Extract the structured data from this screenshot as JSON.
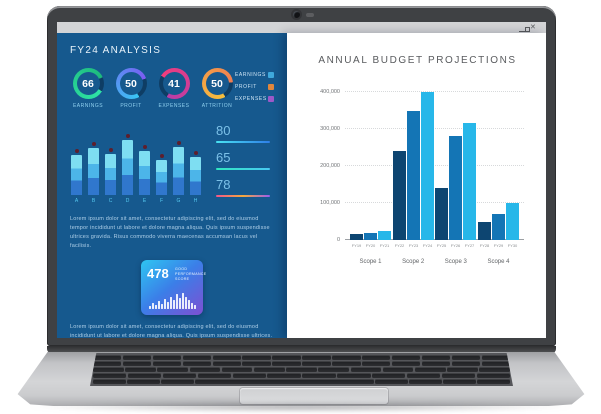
{
  "window": {
    "controls": [
      {
        "name": "minimize"
      },
      {
        "name": "maximize"
      },
      {
        "name": "close"
      }
    ]
  },
  "dashboard": {
    "title": "FY24 ANALYSIS",
    "legend": [
      {
        "label": "EARNINGS",
        "color": "#3fa9dc"
      },
      {
        "label": "PROFIT",
        "color": "#e0873c"
      },
      {
        "label": "EXPENSES",
        "color": "#9c59c9"
      }
    ],
    "metrics": [
      {
        "value": "80",
        "line_colors": [
          "#49e3f2",
          "#2f7fe8"
        ]
      },
      {
        "value": "65",
        "line_colors": [
          "#2fe8c0",
          "#49c8f2"
        ]
      },
      {
        "value": "78",
        "line_colors": [
          "#f2568c",
          "#f5a93d",
          "#9a5cf0"
        ]
      }
    ],
    "paragraph": "Lorem ipsum dolor sit amet, consectetur adipiscing elit, sed do eiusmod tempor incididunt ut labore et dolore magna aliqua. Quis ipsum suspendisse ultrices gravida. Risus commodo viverra maecenas accumsan lacus vel facilisis.",
    "stat_card": {
      "value": "478",
      "label_lines": [
        "GOOD",
        "PERFORMANCE",
        "SCORE"
      ],
      "histogram": [
        3,
        6,
        4,
        8,
        5,
        10,
        7,
        12,
        9,
        15,
        11,
        16,
        12,
        9,
        6,
        4
      ]
    },
    "paragraph2": "Lorem ipsum dolor sit amet, consectetur adipiscing elit, sed do eiusmod incididunt ut labore et dolore magna aliqua. Quis ipsum suspendisse ultrices."
  },
  "report": {
    "title": "ANNUAL BUDGET PROJECTIONS"
  },
  "chart_data": [
    {
      "type": "bar",
      "title": "ANNUAL BUDGET PROJECTIONS",
      "categories": [
        "Scope 1",
        "Scope 2",
        "Scope 3",
        "Scope 4"
      ],
      "x": [
        [
          "FY19",
          "FY20",
          "FY21"
        ],
        [
          "FY22",
          "FY23",
          "FY24"
        ],
        [
          "FY25",
          "FY26",
          "FY27"
        ],
        [
          "FY28",
          "FY29",
          "FY30"
        ]
      ],
      "series": [
        {
          "name": "year-1-of-scope",
          "color": "#0d4571",
          "values": [
            15000,
            240000,
            140000,
            50000
          ]
        },
        {
          "name": "year-2-of-scope",
          "color": "#1475b5",
          "values": [
            18000,
            350000,
            280000,
            70000
          ]
        },
        {
          "name": "year-3-of-scope",
          "color": "#27b7e9",
          "values": [
            25000,
            400000,
            315000,
            100000
          ]
        }
      ],
      "ylim": [
        0,
        400000
      ],
      "yticks": [
        0,
        100000,
        200000,
        300000,
        400000
      ],
      "ytick_labels": [
        "0",
        "100,000",
        "200,000",
        "300,000",
        "400,000"
      ],
      "grid": "horizontal-dotted",
      "legend_position": "none"
    },
    {
      "type": "bar",
      "title": "dashboard-mini-bars",
      "categories": [
        "A",
        "B",
        "C",
        "D",
        "E",
        "F",
        "G",
        "H"
      ],
      "values_pct_of_max": [
        72,
        84,
        74,
        98,
        78,
        63,
        86,
        68
      ],
      "segment_colors": [
        "#7edef2",
        "#4cb5e9",
        "#3077cd"
      ],
      "marker_color": "#5d1f2d"
    },
    {
      "type": "gauge",
      "gauges": [
        {
          "label": "EARNINGS",
          "value": "66",
          "colors": [
            "#2fe5a7",
            "#1db97c"
          ],
          "ring": {
            "start": 120,
            "fill": 85
          }
        },
        {
          "label": "PROFIT",
          "value": "50",
          "colors": [
            "#38c6f4",
            "#7b5bf2"
          ],
          "ring": {
            "start": 150,
            "fill": 78
          }
        },
        {
          "label": "EXPENSES",
          "value": "41",
          "colors": [
            "#f23d7c",
            "#b93da8"
          ],
          "ring": {
            "start": 300,
            "fill": 75
          }
        },
        {
          "label": "ATTRITION",
          "value": "50",
          "colors": [
            "#f6c03d",
            "#ef7d52"
          ],
          "ring": {
            "start": 150,
            "fill": 82
          }
        }
      ]
    }
  ]
}
